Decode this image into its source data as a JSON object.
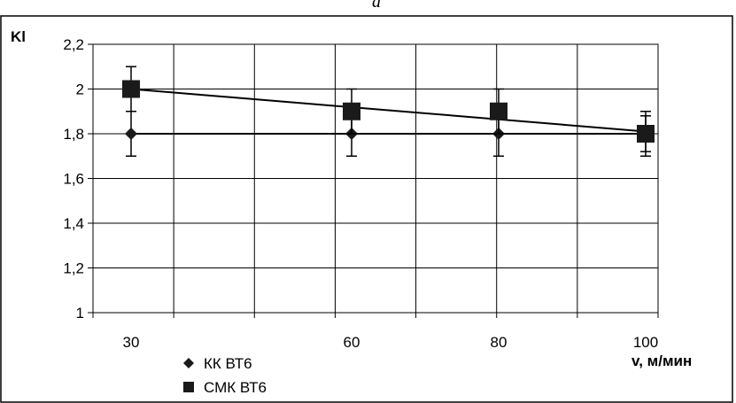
{
  "caption": "a",
  "chart_data": {
    "type": "scatter",
    "title": "",
    "xlabel": "v, м/мин",
    "ylabel": "Kl",
    "categories": [
      "30",
      "60",
      "80",
      "100"
    ],
    "ylim": [
      1,
      2.2
    ],
    "yticks": [
      "1",
      "1,2",
      "1,4",
      "1,6",
      "1,8",
      "2",
      "2,2"
    ],
    "grid": true,
    "legend_position": "bottom-left",
    "series": [
      {
        "name": "КК ВТ6",
        "marker": "diamond",
        "values": [
          1.8,
          1.8,
          1.8,
          1.8
        ],
        "error": [
          0.1,
          0.1,
          0.1,
          0.1
        ],
        "trend": [
          1.8,
          1.8
        ]
      },
      {
        "name": "СМК ВТ6",
        "marker": "square",
        "values": [
          2.0,
          1.9,
          1.9,
          1.8
        ],
        "error": [
          0.1,
          0.1,
          0.1,
          0.08
        ],
        "trend": [
          2.0,
          1.81
        ]
      }
    ],
    "colors": {
      "line": "#000000",
      "marker": "#1a1a1a"
    }
  }
}
